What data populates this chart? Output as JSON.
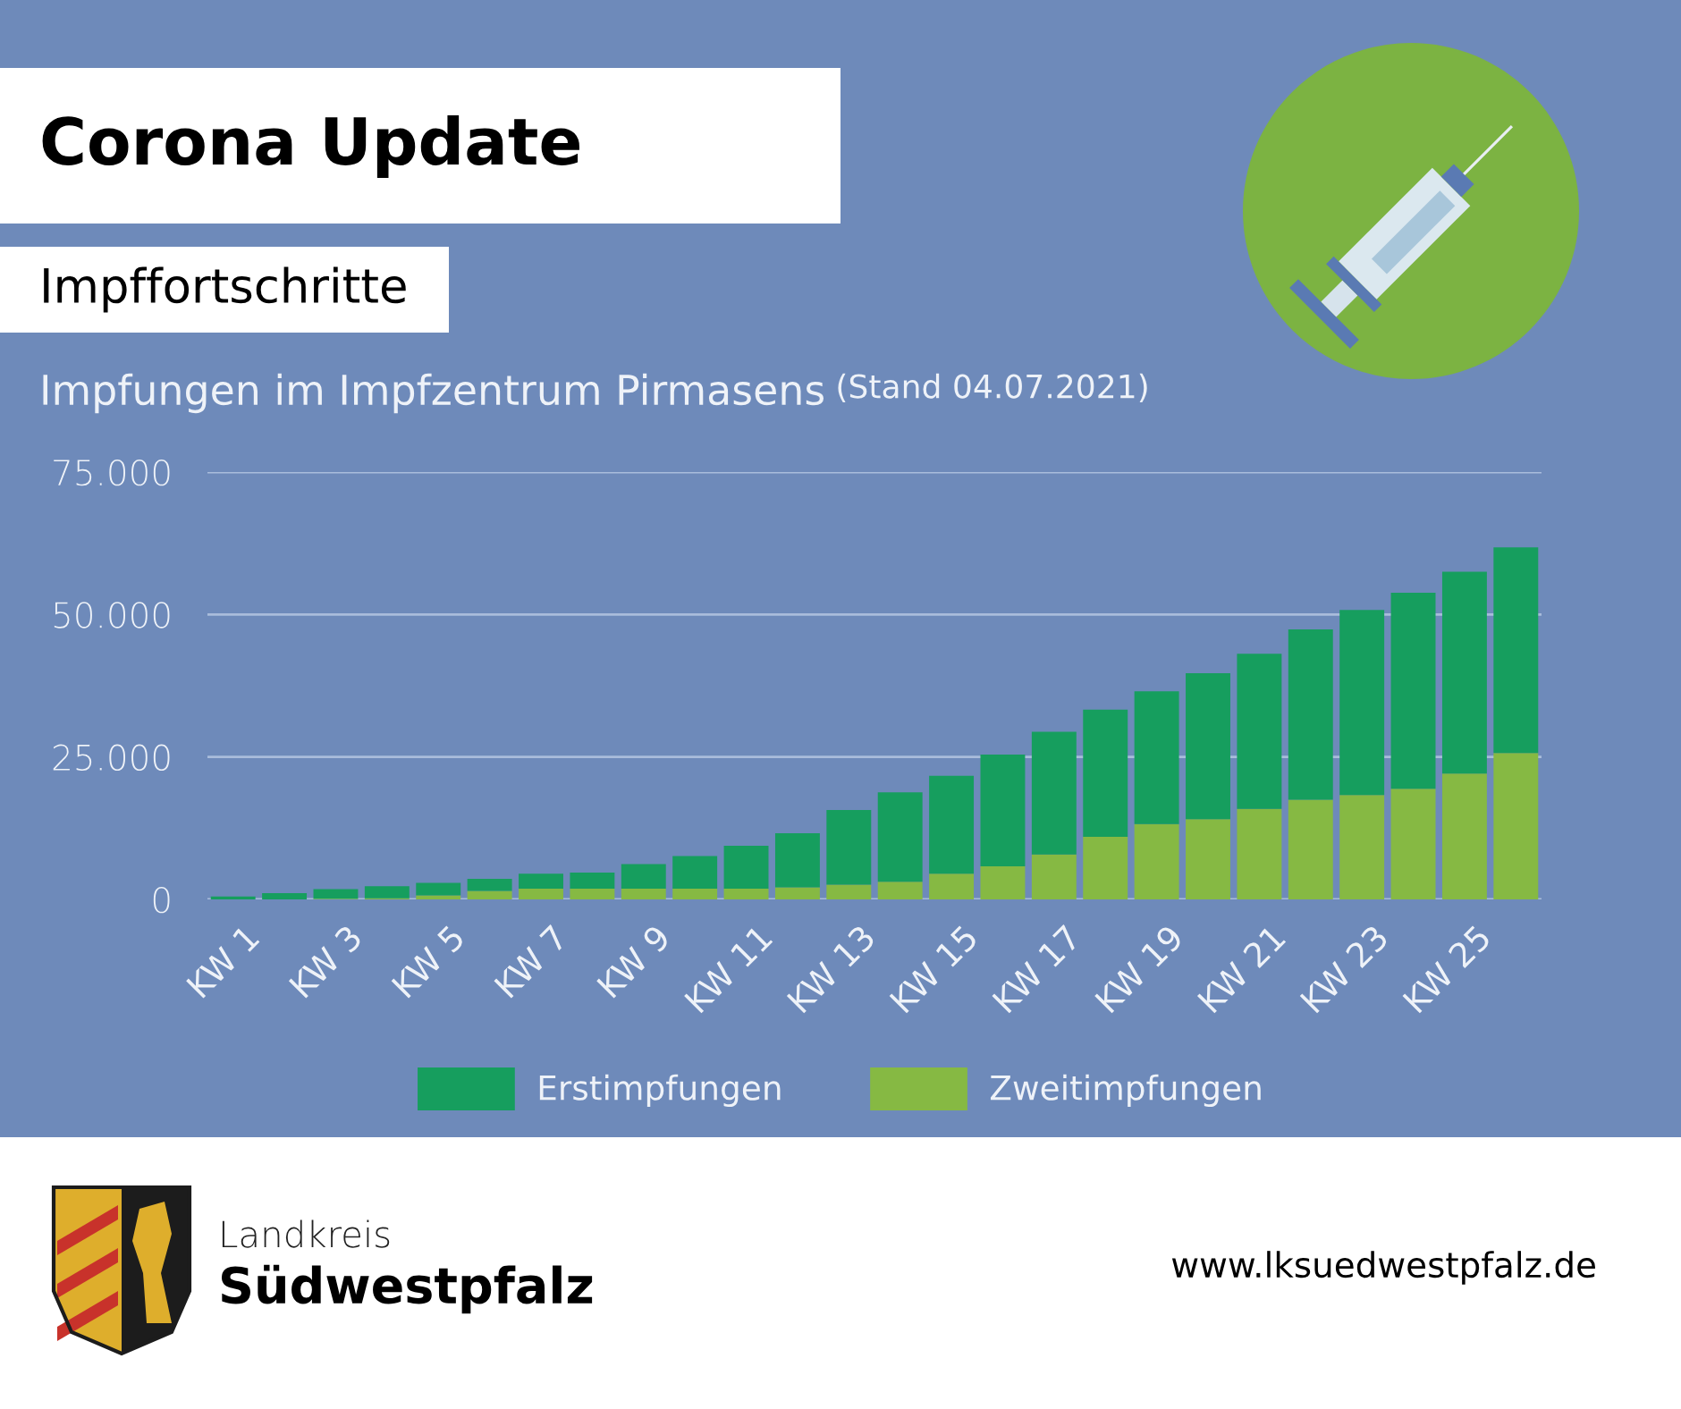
{
  "chart_data": {
    "type": "bar",
    "title": "Corona Update",
    "subtitle": "Impffortschritte",
    "annotations": [
      "Impfungen im Impfzentrum Pirmasens",
      "(Stand 04.07.2021)",
      "Landkreis",
      "Südwestpfalz",
      "www.lksuedwestpfalz.de"
    ],
    "categories": [
      "KW 1",
      null,
      "KW 3",
      null,
      "KW 5",
      null,
      "KW 7",
      null,
      "KW 9",
      null,
      "KW 11",
      null,
      "KW 13",
      null,
      "KW 15",
      null,
      "KW 17",
      null,
      "KW 19",
      null,
      "KW 21",
      null,
      "KW 23",
      null,
      "KW 25",
      null
    ],
    "stacked": true,
    "series": [
      {
        "name": "Zweitimpfungen",
        "color": "#86b943",
        "values": [
          0,
          0,
          100,
          200,
          700,
          1500,
          1900,
          1900,
          1900,
          1900,
          1900,
          2100,
          2600,
          3100,
          4500,
          5800,
          7900,
          11000,
          13200,
          14100,
          15900,
          17500,
          18300,
          19400,
          22100,
          25700
        ]
      },
      {
        "name": "Erstimpfungen",
        "color": "#169e5e",
        "values": [
          500,
          1100,
          1700,
          2100,
          2200,
          2100,
          2600,
          2800,
          4300,
          5700,
          7500,
          9500,
          13100,
          15700,
          17200,
          19600,
          21500,
          22300,
          23300,
          25600,
          27200,
          29900,
          32500,
          34400,
          35400,
          36100
        ]
      }
    ],
    "ylim": [
      0,
      75000
    ],
    "yticks": [
      0,
      {
        "value": 25000,
        "label": "25.000"
      },
      {
        "value": 50000,
        "label": "50.000"
      },
      {
        "value": 75000,
        "label": "75.000"
      }
    ],
    "grid": "y",
    "legend": "bottom"
  }
}
